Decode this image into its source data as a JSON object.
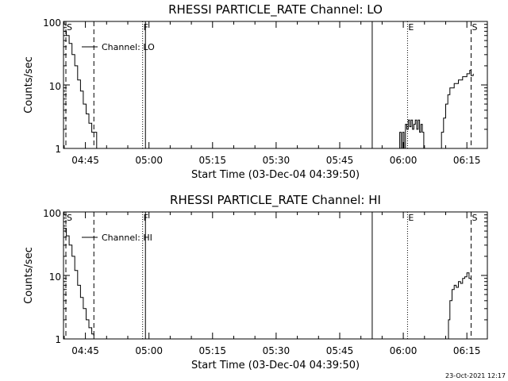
{
  "footer_stamp": "23-Oct-2021 12:17",
  "chart_data": [
    {
      "type": "line",
      "title": "RHESSI PARTICLE_RATE Channel: LO",
      "xlabel": "Start Time (03-Dec-04 04:39:50)",
      "ylabel": "Counts/sec",
      "yscale": "log",
      "ylim": [
        1,
        100
      ],
      "xlim": [
        "04:39:50",
        "06:19:50"
      ],
      "x_ticks": [
        "04:45",
        "05:00",
        "05:15",
        "05:30",
        "05:45",
        "06:00",
        "06:15"
      ],
      "y_ticks": [
        "1",
        "10",
        "100"
      ],
      "legend": "Channel: LO",
      "legend_position": "top-left",
      "markers": [
        {
          "label": "S",
          "time": "04:39:50",
          "style": "dashed"
        },
        {
          "label": "",
          "time": "04:47:00",
          "style": "dashed"
        },
        {
          "label": "F",
          "time": "04:58:30",
          "style": "dotted"
        },
        {
          "label": "",
          "time": "04:59:10",
          "style": "solid"
        },
        {
          "label": "",
          "time": "05:52:40",
          "style": "solid"
        },
        {
          "label": "E",
          "time": "06:01:00",
          "style": "dotted"
        },
        {
          "label": "S",
          "time": "06:16:00",
          "style": "dashed"
        }
      ],
      "series": [
        {
          "segments": [
            [
              [
                "04:39:50",
                70
              ],
              [
                "04:40:30",
                60
              ],
              [
                "04:41:10",
                45
              ],
              [
                "04:41:50",
                30
              ],
              [
                "04:42:30",
                20
              ],
              [
                "04:43:10",
                12
              ],
              [
                "04:43:50",
                8
              ],
              [
                "04:44:30",
                5
              ],
              [
                "04:45:10",
                3.5
              ],
              [
                "04:45:50",
                2.5
              ],
              [
                "04:46:30",
                1.8
              ],
              [
                "04:47:10",
                1.8
              ],
              [
                "04:47:40",
                1.0
              ]
            ],
            [
              [
                "05:59:00",
                1.0
              ],
              [
                "05:59:10",
                1.8
              ],
              [
                "05:59:30",
                1.0
              ],
              [
                "05:59:50",
                1.8
              ],
              [
                "06:00:10",
                1.0
              ],
              [
                "06:00:30",
                2.4
              ],
              [
                "06:00:50",
                2.0
              ],
              [
                "06:01:10",
                2.8
              ],
              [
                "06:01:30",
                2.2
              ],
              [
                "06:01:50",
                2.8
              ],
              [
                "06:02:10",
                2.0
              ],
              [
                "06:02:30",
                2.4
              ],
              [
                "06:02:50",
                2.8
              ],
              [
                "06:03:10",
                2.0
              ],
              [
                "06:03:30",
                2.8
              ],
              [
                "06:03:50",
                1.8
              ],
              [
                "06:04:10",
                2.4
              ],
              [
                "06:04:30",
                1.8
              ],
              [
                "06:04:50",
                1.0
              ]
            ],
            [
              [
                "06:08:40",
                1.0
              ],
              [
                "06:09:00",
                1.8
              ],
              [
                "06:09:30",
                3.0
              ],
              [
                "06:10:00",
                5.0
              ],
              [
                "06:10:30",
                7.0
              ],
              [
                "06:11:00",
                9.0
              ],
              [
                "06:12:00",
                10.5
              ],
              [
                "06:13:00",
                12
              ],
              [
                "06:14:00",
                13.5
              ],
              [
                "06:15:00",
                15
              ],
              [
                "06:15:40",
                17
              ],
              [
                "06:16:00",
                14
              ],
              [
                "06:16:30",
                15
              ]
            ]
          ]
        }
      ]
    },
    {
      "type": "line",
      "title": "RHESSI PARTICLE_RATE Channel: HI",
      "xlabel": "Start Time (03-Dec-04 04:39:50)",
      "ylabel": "Counts/sec",
      "yscale": "log",
      "ylim": [
        1,
        100
      ],
      "xlim": [
        "04:39:50",
        "06:19:50"
      ],
      "x_ticks": [
        "04:45",
        "05:00",
        "05:15",
        "05:30",
        "05:45",
        "06:00",
        "06:15"
      ],
      "y_ticks": [
        "1",
        "10",
        "100"
      ],
      "legend": "Channel: HI",
      "legend_position": "top-left",
      "markers": [
        {
          "label": "S",
          "time": "04:39:50",
          "style": "dashed"
        },
        {
          "label": "",
          "time": "04:47:00",
          "style": "dashed"
        },
        {
          "label": "F",
          "time": "04:58:30",
          "style": "dotted"
        },
        {
          "label": "",
          "time": "04:59:10",
          "style": "solid"
        },
        {
          "label": "",
          "time": "05:52:40",
          "style": "solid"
        },
        {
          "label": "E",
          "time": "06:01:00",
          "style": "dotted"
        },
        {
          "label": "S",
          "time": "06:16:00",
          "style": "dashed"
        }
      ],
      "series": [
        {
          "segments": [
            [
              [
                "04:39:50",
                55
              ],
              [
                "04:40:30",
                42
              ],
              [
                "04:41:10",
                30
              ],
              [
                "04:41:50",
                20
              ],
              [
                "04:42:30",
                12
              ],
              [
                "04:43:10",
                7
              ],
              [
                "04:43:50",
                4.5
              ],
              [
                "04:44:30",
                3
              ],
              [
                "04:45:10",
                2
              ],
              [
                "04:45:50",
                1.5
              ],
              [
                "04:46:30",
                1.2
              ],
              [
                "04:47:00",
                1.0
              ]
            ],
            [
              [
                "06:10:20",
                1.0
              ],
              [
                "06:10:40",
                2.0
              ],
              [
                "06:11:00",
                4.0
              ],
              [
                "06:11:30",
                6.0
              ],
              [
                "06:12:00",
                7.0
              ],
              [
                "06:12:30",
                6.5
              ],
              [
                "06:13:00",
                8.0
              ],
              [
                "06:13:30",
                7.5
              ],
              [
                "06:14:00",
                9.0
              ],
              [
                "06:14:30",
                9.5
              ],
              [
                "06:15:00",
                11
              ],
              [
                "06:15:30",
                9.0
              ],
              [
                "06:16:00",
                9.5
              ]
            ]
          ]
        }
      ]
    }
  ]
}
